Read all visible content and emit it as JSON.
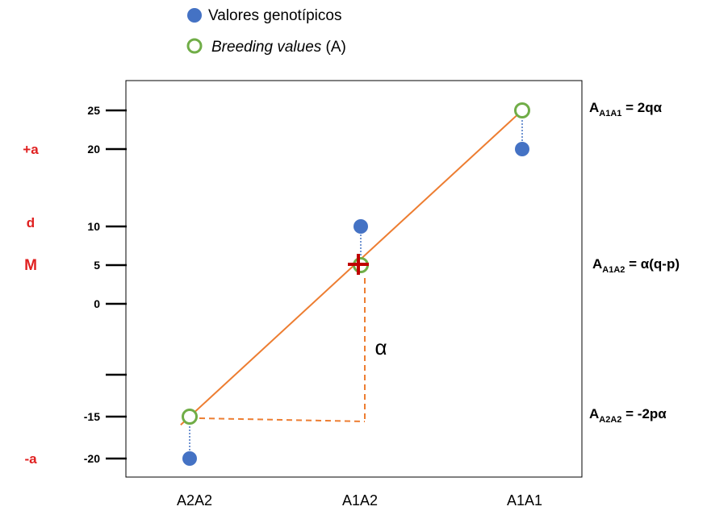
{
  "legend": {
    "genotypic": {
      "label": "Valores genotípicos",
      "color": "#4472c4"
    },
    "breeding": {
      "label_italic": "Breeding values",
      "label_rest": " (A)",
      "color": "#70ad47"
    }
  },
  "chart_data": {
    "type": "scatter",
    "categories": [
      "A2A2",
      "A1A2",
      "A1A1"
    ],
    "genotypic_values": [
      -20,
      10,
      20
    ],
    "breeding_values": [
      -15,
      5,
      25
    ],
    "y_ticks": [
      25,
      20,
      10,
      5,
      0,
      -15,
      -20
    ],
    "y_tick_marks_unlabeled": [
      -10
    ],
    "mean": 5,
    "side_labels": [
      {
        "text": "+a",
        "y": 20
      },
      {
        "text": "d",
        "y": 10
      },
      {
        "text": "M",
        "y": 5
      },
      {
        "text": "-a",
        "y": -20
      }
    ],
    "alpha_symbol": "α",
    "regression_color": "#ed7d31",
    "mean_marker_color": "#c00000"
  },
  "formulas": [
    {
      "main": "A",
      "sub": "A1A1",
      "rest": " = 2qα",
      "y": 25
    },
    {
      "main": "A",
      "sub": "A1A2",
      "rest": " = α(q-p)",
      "y": 5
    },
    {
      "main": "A",
      "sub": "A2A2",
      "rest": " = -2pα",
      "y": -15
    }
  ]
}
